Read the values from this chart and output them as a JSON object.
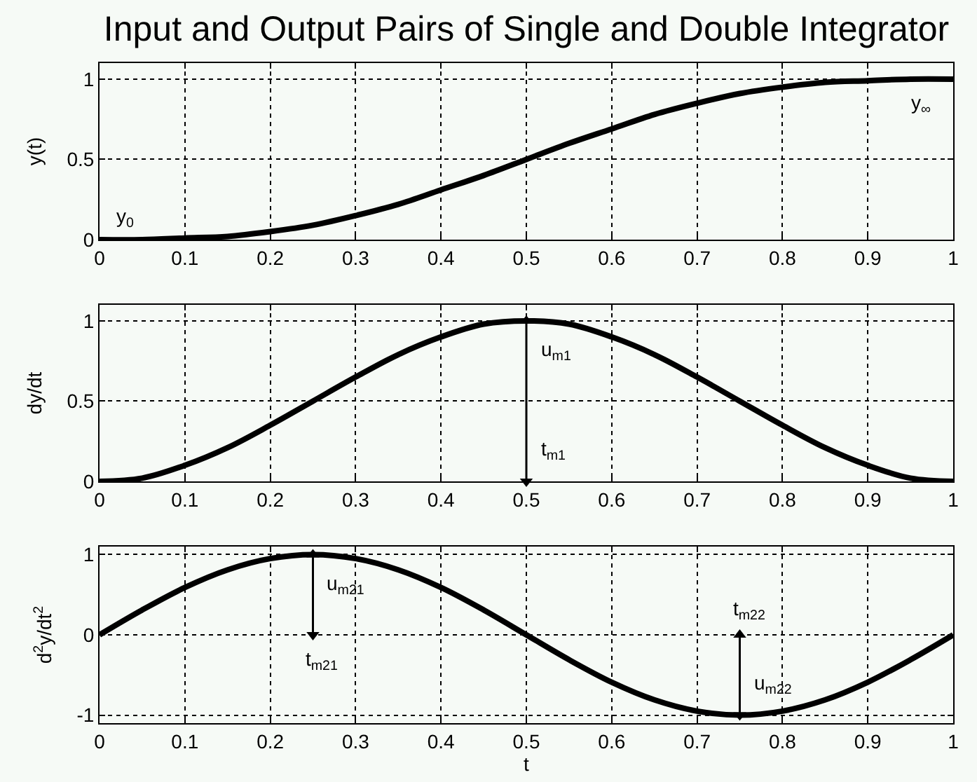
{
  "chart_data": [
    {
      "type": "line",
      "title": "Input and Output Pairs of Single and Double Integrator",
      "ylabel": "y(t)",
      "x": [
        0,
        0.05,
        0.1,
        0.15,
        0.2,
        0.25,
        0.3,
        0.35,
        0.4,
        0.45,
        0.5,
        0.55,
        0.6,
        0.65,
        0.7,
        0.75,
        0.8,
        0.85,
        0.9,
        0.95,
        1
      ],
      "series": [
        {
          "color": "#000000",
          "values": [
            0,
            0,
            0.01,
            0.02,
            0.05,
            0.09,
            0.15,
            0.22,
            0.31,
            0.4,
            0.5,
            0.6,
            0.69,
            0.78,
            0.85,
            0.91,
            0.95,
            0.98,
            0.99,
            1,
            1
          ]
        }
      ],
      "xlim": [
        0,
        1
      ],
      "xticks": [
        0,
        0.1,
        0.2,
        0.3,
        0.4,
        0.5,
        0.6,
        0.7,
        0.8,
        0.9,
        1
      ],
      "ylim": [
        0,
        1.1
      ],
      "yticks": [
        0,
        0.5,
        1
      ],
      "grid": true,
      "line_style": "solid",
      "annotations": [
        {
          "text": "y$_{0}$",
          "x": 0,
          "y": 0
        },
        {
          "text": "y$_{∞}$",
          "x": 1,
          "y": 1
        }
      ]
    },
    {
      "type": "line",
      "ylabel": "dy/dt",
      "x": [
        0,
        0.05,
        0.1,
        0.15,
        0.2,
        0.25,
        0.3,
        0.35,
        0.4,
        0.45,
        0.5,
        0.55,
        0.6,
        0.65,
        0.7,
        0.75,
        0.8,
        0.85,
        0.9,
        0.95,
        1
      ],
      "series": [
        {
          "color": "#000000",
          "values": [
            0,
            0.02,
            0.1,
            0.21,
            0.35,
            0.5,
            0.65,
            0.79,
            0.9,
            0.98,
            1,
            0.98,
            0.9,
            0.79,
            0.65,
            0.5,
            0.35,
            0.21,
            0.1,
            0.02,
            0
          ]
        },
        {
          "type": "line",
          "color": "#000000",
          "x": [
            0.5,
            0.5
          ],
          "values": [
            1,
            0
          ],
          "marker": "triangle"
        }
      ],
      "xlim": [
        0,
        1
      ],
      "xticks": [
        0,
        0.1,
        0.2,
        0.3,
        0.4,
        0.5,
        0.6,
        0.7,
        0.8,
        0.9,
        1
      ],
      "ylim": [
        0,
        1.1
      ],
      "yticks": [
        0,
        0.5,
        1
      ],
      "grid": true,
      "line_style": "solid",
      "annotations": [
        {
          "text": "u$_{m1}$",
          "x": 0.5,
          "y": 1
        },
        {
          "text": "t$_{m1}$",
          "x": 0.5,
          "y": 0
        }
      ]
    },
    {
      "type": "line",
      "ylabel": "d$^{2}$y/dt$^{2}$",
      "xlabel": "t",
      "x": [
        0,
        0.05,
        0.1,
        0.15,
        0.2,
        0.25,
        0.3,
        0.35,
        0.4,
        0.45,
        0.5,
        0.55,
        0.6,
        0.65,
        0.7,
        0.75,
        0.8,
        0.85,
        0.9,
        0.95,
        1
      ],
      "series": [
        {
          "color": "#000000",
          "values": [
            0,
            0.31,
            0.59,
            0.81,
            0.95,
            1,
            0.95,
            0.81,
            0.59,
            0.31,
            0,
            -0.31,
            -0.59,
            -0.81,
            -0.95,
            -1,
            -0.95,
            -0.81,
            -0.59,
            -0.31,
            0
          ]
        },
        {
          "type": "line",
          "color": "#000000",
          "x": [
            0.25,
            0.25
          ],
          "values": [
            1,
            0
          ],
          "marker": "triangle"
        },
        {
          "type": "line",
          "color": "#000000",
          "x": [
            0.75,
            0.75
          ],
          "values": [
            0,
            -1
          ],
          "marker": "triangle"
        }
      ],
      "xlim": [
        0,
        1
      ],
      "xticks": [
        0,
        0.1,
        0.2,
        0.3,
        0.4,
        0.5,
        0.6,
        0.7,
        0.8,
        0.9,
        1
      ],
      "ylim": [
        -1.1,
        1.1
      ],
      "yticks": [
        -1,
        0,
        1
      ],
      "grid": true,
      "line_style": "solid",
      "annotations": [
        {
          "text": "u$_{m21}$",
          "x": 0.25,
          "y": 1
        },
        {
          "text": "t$_{m21}$",
          "x": 0.25,
          "y": 0
        },
        {
          "text": "t$_{m22}$",
          "x": 0.75,
          "y": 0
        },
        {
          "text": "u$_{m22}$",
          "x": 0.75,
          "y": -1
        }
      ]
    }
  ]
}
